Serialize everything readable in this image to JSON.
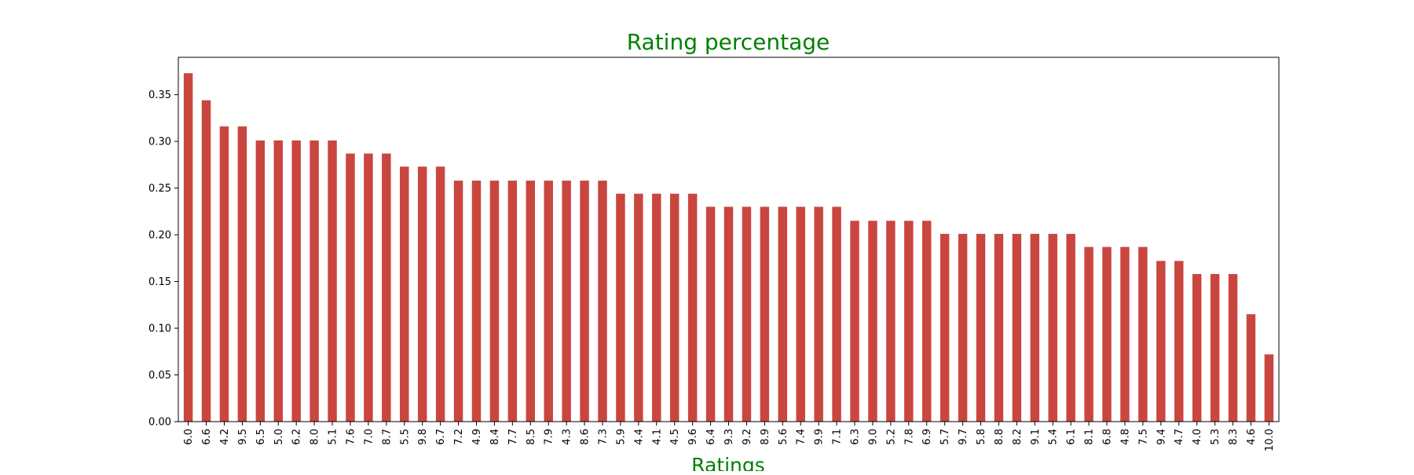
{
  "chart_data": {
    "type": "bar",
    "title": "Rating percentage",
    "xlabel": "Ratings",
    "ylabel": "",
    "ylim": [
      0,
      0.39
    ],
    "yticks": [
      0.0,
      0.05,
      0.1,
      0.15,
      0.2,
      0.25,
      0.3,
      0.35
    ],
    "ytick_labels": [
      "0.00",
      "0.05",
      "0.10",
      "0.15",
      "0.20",
      "0.25",
      "0.30",
      "0.35"
    ],
    "grid": false,
    "legend": "none",
    "bar_color": "#c9463f",
    "title_color": "#008000",
    "label_color": "#008000",
    "categories": [
      "6.0",
      "6.6",
      "4.2",
      "9.5",
      "6.5",
      "5.0",
      "6.2",
      "8.0",
      "5.1",
      "7.6",
      "7.0",
      "8.7",
      "5.5",
      "9.8",
      "6.7",
      "7.2",
      "4.9",
      "8.4",
      "7.7",
      "8.5",
      "7.9",
      "4.3",
      "8.6",
      "7.3",
      "5.9",
      "4.4",
      "4.1",
      "4.5",
      "9.6",
      "6.4",
      "9.3",
      "9.2",
      "8.9",
      "5.6",
      "7.4",
      "9.9",
      "7.1",
      "6.3",
      "9.0",
      "5.2",
      "7.8",
      "6.9",
      "5.7",
      "9.7",
      "5.8",
      "8.8",
      "8.2",
      "9.1",
      "5.4",
      "6.1",
      "8.1",
      "6.8",
      "4.8",
      "7.5",
      "9.4",
      "4.7",
      "4.0",
      "5.3",
      "8.3",
      "4.6",
      "10.0"
    ],
    "values": [
      0.373,
      0.344,
      0.316,
      0.316,
      0.301,
      0.301,
      0.301,
      0.301,
      0.301,
      0.287,
      0.287,
      0.287,
      0.273,
      0.273,
      0.273,
      0.258,
      0.258,
      0.258,
      0.258,
      0.258,
      0.258,
      0.258,
      0.258,
      0.258,
      0.244,
      0.244,
      0.244,
      0.244,
      0.244,
      0.23,
      0.23,
      0.23,
      0.23,
      0.23,
      0.23,
      0.23,
      0.23,
      0.215,
      0.215,
      0.215,
      0.215,
      0.215,
      0.201,
      0.201,
      0.201,
      0.201,
      0.201,
      0.201,
      0.201,
      0.201,
      0.187,
      0.187,
      0.187,
      0.187,
      0.172,
      0.172,
      0.158,
      0.158,
      0.158,
      0.115,
      0.072
    ]
  }
}
